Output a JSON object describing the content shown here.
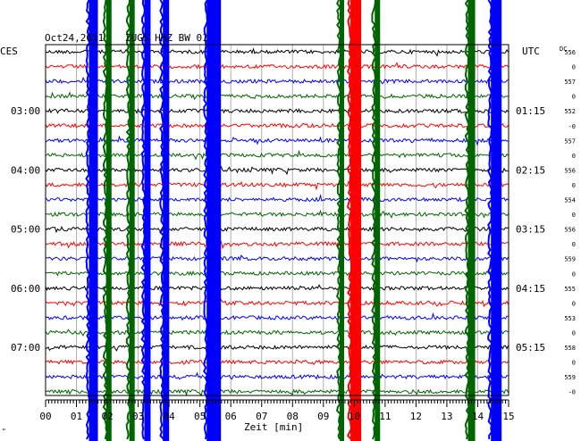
{
  "header": {
    "date": "Oct24,2011",
    "station": "ZUGS HHZ BW 01",
    "left_zone": "CES",
    "right_zone": "UTC",
    "dc_label": "DC"
  },
  "xaxis": {
    "label": "Zeit [min]",
    "ticks": [
      "00",
      "01",
      "02",
      "03",
      "04",
      "05",
      "06",
      "07",
      "08",
      "09",
      "10",
      "11",
      "12",
      "13",
      "14",
      "15"
    ],
    "range": [
      0,
      15
    ]
  },
  "colors": {
    "trace_cycle": [
      "#000000",
      "#ff0000",
      "#0000ff",
      "#006400"
    ],
    "burst_blue": "#0000ff",
    "burst_green": "#006400",
    "burst_red": "#ff0000",
    "grid": "#b0b0b0"
  },
  "chart_data": {
    "type": "helicorder",
    "rows_total": 24,
    "minutes_per_row": 15,
    "left_time_labels": [
      {
        "row": 4,
        "text": "03:00"
      },
      {
        "row": 8,
        "text": "04:00"
      },
      {
        "row": 12,
        "text": "05:00"
      },
      {
        "row": 16,
        "text": "06:00"
      },
      {
        "row": 20,
        "text": "07:00"
      }
    ],
    "right_time_labels": [
      {
        "row": 4,
        "text": "01:15"
      },
      {
        "row": 8,
        "text": "02:15"
      },
      {
        "row": 12,
        "text": "03:15"
      },
      {
        "row": 16,
        "text": "04:15"
      },
      {
        "row": 20,
        "text": "05:15"
      }
    ],
    "dc_offsets": [
      "556",
      "0",
      "557",
      "0",
      "552",
      "-0",
      "557",
      "0",
      "556",
      "0",
      "554",
      "0",
      "556",
      "0",
      "559",
      "0",
      "555",
      "0",
      "553",
      "0",
      "558",
      "0",
      "559",
      "-0"
    ],
    "bursts": [
      {
        "minute": 1.55,
        "color": "blue",
        "width": 10
      },
      {
        "minute": 2.05,
        "color": "green",
        "width": 6
      },
      {
        "minute": 2.8,
        "color": "green",
        "width": 6
      },
      {
        "minute": 3.3,
        "color": "blue",
        "width": 7
      },
      {
        "minute": 3.9,
        "color": "blue",
        "width": 7
      },
      {
        "minute": 5.45,
        "color": "blue",
        "width": 16
      },
      {
        "minute": 9.6,
        "color": "green",
        "width": 5
      },
      {
        "minute": 10.05,
        "color": "red",
        "width": 12
      },
      {
        "minute": 10.75,
        "color": "green",
        "width": 6
      },
      {
        "minute": 13.8,
        "color": "green",
        "width": 8
      },
      {
        "minute": 14.6,
        "color": "blue",
        "width": 12
      }
    ],
    "corner_mark": "\""
  }
}
